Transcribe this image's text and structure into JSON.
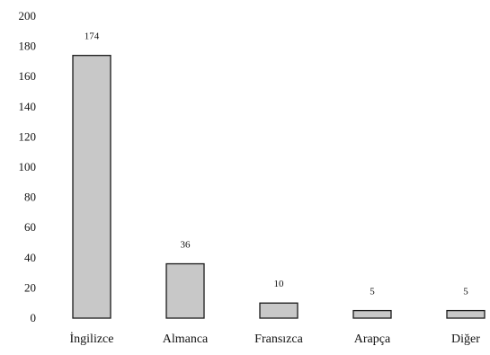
{
  "chart_data": {
    "type": "bar",
    "title": "",
    "xlabel": "",
    "ylabel": "",
    "categories": [
      "İngilizce",
      "Almanca",
      "Fransızca",
      "Arapça",
      "Diğer"
    ],
    "values": [
      174,
      36,
      10,
      5,
      5
    ],
    "data_labels": [
      "174",
      "36",
      "10",
      "5",
      "5"
    ],
    "ylim": [
      0,
      200
    ],
    "yticks": [
      0,
      20,
      40,
      60,
      80,
      100,
      120,
      140,
      160,
      180,
      200
    ],
    "ytick_labels": [
      "0",
      "20",
      "40",
      "60",
      "80",
      "100",
      "120",
      "140",
      "160",
      "180",
      "200"
    ],
    "grid": false,
    "legend": "none",
    "bar_fill_color": "#c8c8c8",
    "bar_edge_color": "#1a1a1a",
    "axis_color": "#1a1a1a"
  }
}
